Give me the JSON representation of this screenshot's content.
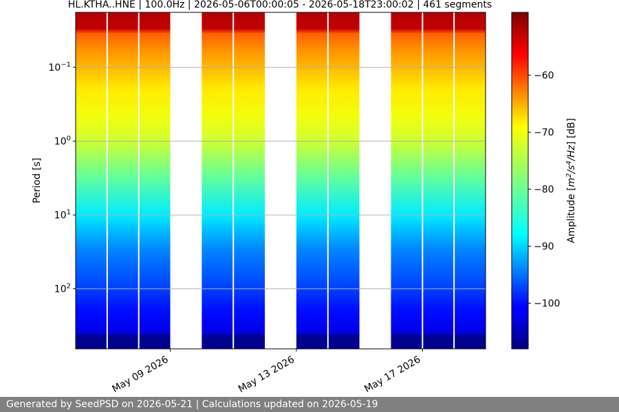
{
  "chart_data": {
    "type": "heatmap",
    "title": "HL.KTHA..HNE | 100.0Hz | 2026-05-06T00:00:05 - 2026-05-18T23:00:02 | 461 segments",
    "ylabel": "Period [s]",
    "yscale": "log",
    "ylim": [
      650,
      0.018
    ],
    "y_ticks": [
      {
        "value": 0.1,
        "base": "10",
        "exp": "−1"
      },
      {
        "value": 1,
        "base": "10",
        "exp": "0"
      },
      {
        "value": 10,
        "base": "10",
        "exp": "1"
      },
      {
        "value": 100,
        "base": "10",
        "exp": "2"
      }
    ],
    "xlim": [
      "2026-05-06T00:00:05",
      "2026-05-19T00:00:00"
    ],
    "x_ticks": [
      {
        "date": "2026-05-09",
        "label": "May 09 2026"
      },
      {
        "date": "2026-05-13",
        "label": "May 13 2026"
      },
      {
        "date": "2026-05-17",
        "label": "May 17 2026"
      }
    ],
    "grid": true,
    "data_gaps": [
      {
        "start": "2026-05-09",
        "end": "2026-05-10"
      },
      {
        "start": "2026-05-12",
        "end": "2026-05-13"
      },
      {
        "start": "2026-05-15",
        "end": "2026-05-16"
      }
    ],
    "daily_gap_lines": [
      "2026-05-07",
      "2026-05-08",
      "2026-05-11",
      "2026-05-14",
      "2026-05-17",
      "2026-05-18"
    ],
    "amplitude_profile_db": [
      {
        "period": 0.018,
        "value": -52
      },
      {
        "period": 0.03,
        "value": -53
      },
      {
        "period": 0.035,
        "value": -62
      },
      {
        "period": 0.06,
        "value": -65
      },
      {
        "period": 0.1,
        "value": -67
      },
      {
        "period": 0.2,
        "value": -70
      },
      {
        "period": 0.5,
        "value": -72
      },
      {
        "period": 1,
        "value": -74
      },
      {
        "period": 3,
        "value": -80
      },
      {
        "period": 10,
        "value": -87
      },
      {
        "period": 30,
        "value": -93
      },
      {
        "period": 100,
        "value": -97
      },
      {
        "period": 200,
        "value": -100
      },
      {
        "period": 400,
        "value": -102
      },
      {
        "period": 420,
        "value": -107
      },
      {
        "period": 650,
        "value": -107
      }
    ],
    "colorbar": {
      "label_base": "Amplitude [",
      "label_m": "m",
      "label_m_exp": "2",
      "label_slash1": "/",
      "label_s": "s",
      "label_s_exp": "4",
      "label_slash2": "/",
      "label_hz": "Hz",
      "label_end": "] [dB]",
      "range": [
        -108,
        -49
      ],
      "ticks": [
        -100,
        -90,
        -80,
        -70,
        -60
      ],
      "tick_labels": [
        "−100",
        "−90",
        "−80",
        "−70",
        "−60"
      ],
      "colormap": "jet"
    }
  },
  "footer": {
    "text": "Generated by SeedPSD on 2026-05-21 | Calculations updated on 2026-05-19"
  }
}
